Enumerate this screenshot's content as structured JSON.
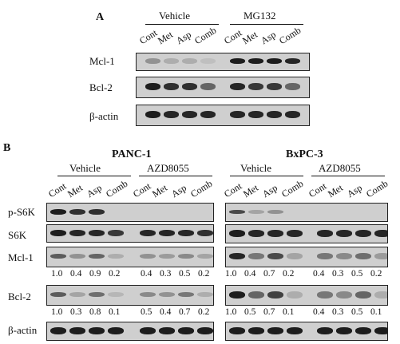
{
  "panel_a": {
    "label": "A",
    "groups": [
      "Vehicle",
      "MG132"
    ],
    "lanes": [
      "Cont",
      "Met",
      "Asp",
      "Comb"
    ],
    "rows": [
      "Mcl-1",
      "Bcl-2",
      "β-actin"
    ]
  },
  "panel_b": {
    "label": "B",
    "cell_lines": [
      "PANC-1",
      "BxPC-3"
    ],
    "groups": [
      "Vehicle",
      "AZD8055"
    ],
    "lanes": [
      "Cont",
      "Met",
      "Asp",
      "Comb"
    ],
    "rows": [
      "p-S6K",
      "S6K",
      "Mcl-1",
      "Bcl-2",
      "β-actin"
    ],
    "quant": {
      "panc1": {
        "mcl1": [
          "1.0",
          "0.4",
          "0.9",
          "0.2",
          "0.4",
          "0.3",
          "0.5",
          "0.2"
        ],
        "bcl2": [
          "1.0",
          "0.3",
          "0.8",
          "0.1",
          "0.5",
          "0.4",
          "0.7",
          "0.2"
        ]
      },
      "bxpc3": {
        "mcl1": [
          "1.0",
          "0.4",
          "0.7",
          "0.2",
          "0.4",
          "0.3",
          "0.5",
          "0.2"
        ],
        "bcl2": [
          "1.0",
          "0.5",
          "0.7",
          "0.1",
          "0.4",
          "0.3",
          "0.5",
          "0.1"
        ]
      }
    }
  }
}
